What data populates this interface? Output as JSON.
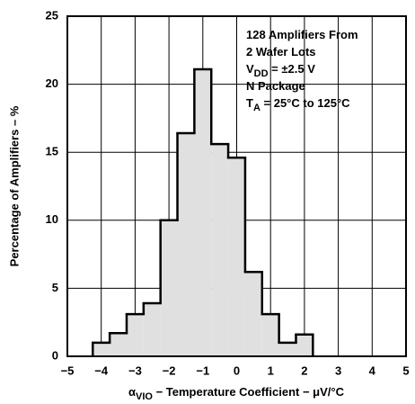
{
  "chart_data": {
    "type": "histogram",
    "ylabel": "Percentage of Amplifiers – %",
    "xlabel": [
      "α",
      "VIO",
      " − Temperature Coefficient − μV/°C"
    ],
    "annotation": [
      [
        "128 Amplifiers From"
      ],
      [
        "2 Wafer Lots"
      ],
      [
        "V",
        "DD",
        " = ±2.5 V"
      ],
      [
        "N Package"
      ],
      [
        "T",
        "A",
        " = 25°C to 125°C"
      ]
    ],
    "bins": [
      -4.25,
      -3.75,
      -3.25,
      -2.75,
      -2.25,
      -1.75,
      -1.25,
      -0.75,
      -0.25,
      0.25,
      0.75,
      1.25,
      1.75,
      2.25
    ],
    "values": [
      1.0,
      1.7,
      3.1,
      3.9,
      10.0,
      16.4,
      21.1,
      15.6,
      14.6,
      6.2,
      3.1,
      1.0,
      1.6
    ],
    "color": "#e0e0e0",
    "xlim": [
      -5,
      5
    ],
    "xticks": [
      {
        "value": -5,
        "label": "−5"
      },
      {
        "value": -4,
        "label": "−4"
      },
      {
        "value": -3,
        "label": "−3"
      },
      {
        "value": -2,
        "label": "−2"
      },
      {
        "value": -1,
        "label": "−1"
      },
      0,
      1,
      2,
      3,
      4,
      5
    ],
    "ylim": [
      0,
      25
    ],
    "yticks": [
      0,
      5,
      10,
      15,
      20,
      25
    ],
    "grid": true
  }
}
